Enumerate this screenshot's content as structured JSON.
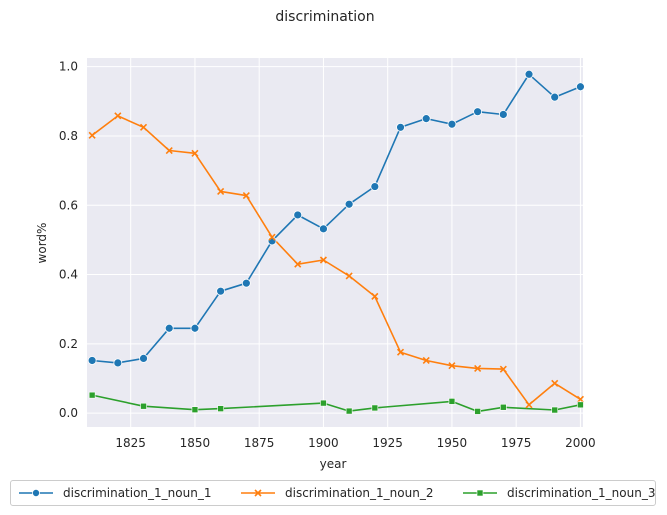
{
  "chart_data": {
    "type": "line",
    "title": "discrimination",
    "xlabel": "year",
    "ylabel": "word%",
    "xlim": [
      1808,
      2001
    ],
    "ylim": [
      -0.04,
      1.025
    ],
    "xticks": [
      1825,
      1850,
      1875,
      1900,
      1925,
      1950,
      1975,
      2000
    ],
    "yticks": [
      0.0,
      0.2,
      0.4,
      0.6,
      0.8,
      1.0
    ],
    "xtick_labels": [
      "1825",
      "1850",
      "1875",
      "1900",
      "1925",
      "1950",
      "1975",
      "2000"
    ],
    "ytick_labels": [
      "0.0",
      "0.2",
      "0.4",
      "0.6",
      "0.8",
      "1.0"
    ],
    "grid": true,
    "legend_position": "bottom-center",
    "series": [
      {
        "name": "discrimination_1_noun_1",
        "color": "#1f77b4",
        "marker": "circle",
        "x": [
          1810,
          1820,
          1830,
          1840,
          1850,
          1860,
          1870,
          1880,
          1890,
          1900,
          1910,
          1920,
          1930,
          1940,
          1950,
          1960,
          1970,
          1980,
          1990,
          2000
        ],
        "y": [
          0.152,
          0.145,
          0.158,
          0.245,
          0.245,
          0.352,
          0.375,
          0.497,
          0.572,
          0.532,
          0.603,
          0.654,
          0.825,
          0.85,
          0.834,
          0.87,
          0.862,
          0.978,
          0.912,
          0.942
        ]
      },
      {
        "name": "discrimination_1_noun_2",
        "color": "#ff7f0e",
        "marker": "x",
        "x": [
          1810,
          1820,
          1830,
          1840,
          1850,
          1860,
          1870,
          1880,
          1890,
          1900,
          1910,
          1920,
          1930,
          1940,
          1950,
          1960,
          1970,
          1980,
          1990,
          2000
        ],
        "y": [
          0.802,
          0.858,
          0.825,
          0.758,
          0.75,
          0.64,
          0.628,
          0.508,
          0.43,
          0.442,
          0.396,
          0.337,
          0.176,
          0.152,
          0.137,
          0.129,
          0.127,
          0.024,
          0.086,
          0.04
        ]
      },
      {
        "name": "discrimination_1_noun_3",
        "color": "#2ca02c",
        "marker": "square",
        "x": [
          1810,
          1830,
          1850,
          1860,
          1900,
          1910,
          1920,
          1950,
          1960,
          1970,
          1990,
          2000
        ],
        "y": [
          0.052,
          0.02,
          0.01,
          0.013,
          0.029,
          0.006,
          0.015,
          0.034,
          0.005,
          0.017,
          0.009,
          0.024
        ]
      }
    ]
  }
}
